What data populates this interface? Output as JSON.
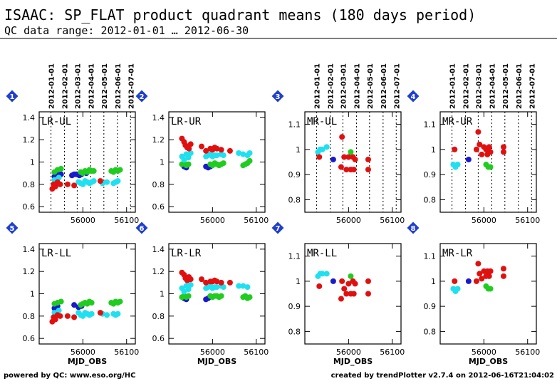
{
  "header": {
    "title": "ISAAC: SP_FLAT product quadrant means (180 days period)",
    "subtitle": "QC data range: 2012-01-01 … 2012-06-30"
  },
  "footer": {
    "left": "powered by QC: www.eso.org/HC",
    "right": "created by trendPlotter v2.7.4 on 2012-06-16T21:04:02"
  },
  "colors": {
    "blue": "#1a1acc",
    "red": "#e01010",
    "cyan": "#20e0f0",
    "green": "#20cc20",
    "badge": "#1f3fcc"
  },
  "chart_data": [
    {
      "type": "scatter",
      "panel": "1",
      "label": "LR-UL",
      "xlim": [
        55900,
        56120
      ],
      "ylim": [
        0.55,
        1.45
      ],
      "xticks": [
        56000,
        56100
      ],
      "yticks": [
        0.6,
        0.8,
        1,
        1.2,
        1.4
      ],
      "xlabel": "MJD_OBS",
      "date_ticks": [
        "2012-01-01",
        "2012-02-01",
        "2012-03-01",
        "2012-04-01",
        "2012-05-01",
        "2012-06-01",
        "2012-07-01"
      ],
      "date_mjd": [
        55927,
        55958,
        55987,
        56018,
        56048,
        56079,
        56109
      ],
      "series": [
        {
          "color": "blue",
          "x": [
            55935,
            55942,
            55950,
            55975,
            55980,
            55985,
            55992,
            55997,
            56008
          ],
          "y": [
            0.87,
            0.89,
            0.89,
            0.88,
            0.89,
            0.89,
            0.88,
            0.89,
            0.9
          ]
        },
        {
          "color": "green",
          "x": [
            55935,
            55942,
            55950,
            55995,
            56000,
            56005,
            56010,
            56015,
            56020,
            56025,
            56065,
            56070,
            56075,
            56080,
            56085
          ],
          "y": [
            0.91,
            0.93,
            0.94,
            0.91,
            0.9,
            0.92,
            0.91,
            0.93,
            0.92,
            0.92,
            0.92,
            0.91,
            0.93,
            0.92,
            0.93
          ]
        },
        {
          "color": "cyan",
          "x": [
            55935,
            55940,
            55945,
            55990,
            55995,
            56000,
            56005,
            56010,
            56015,
            56020,
            56025,
            56045,
            56055,
            56070,
            56075,
            56080
          ],
          "y": [
            0.84,
            0.82,
            0.86,
            0.82,
            0.81,
            0.8,
            0.83,
            0.82,
            0.81,
            0.82,
            0.83,
            0.81,
            0.82,
            0.81,
            0.82,
            0.83
          ]
        },
        {
          "color": "red",
          "x": [
            55930,
            55933,
            55937,
            55942,
            55948,
            55965,
            55980,
            56040
          ],
          "y": [
            0.76,
            0.8,
            0.78,
            0.82,
            0.8,
            0.8,
            0.79,
            0.83
          ]
        }
      ]
    },
    {
      "type": "scatter",
      "panel": "2",
      "label": "LR-UR",
      "xlim": [
        55900,
        56120
      ],
      "ylim": [
        0.55,
        1.45
      ],
      "xticks": [
        56000,
        56100
      ],
      "yticks": [
        0.6,
        0.8,
        1,
        1.2,
        1.4
      ],
      "xlabel": "MJD_OBS",
      "series": [
        {
          "color": "blue",
          "x": [
            55935,
            55940,
            55985,
            55990,
            55995
          ],
          "y": [
            0.96,
            0.95,
            0.96,
            0.95,
            0.96
          ]
        },
        {
          "color": "green",
          "x": [
            55930,
            55935,
            55940,
            55945,
            55995,
            56000,
            56005,
            56010,
            56015,
            56020,
            56025,
            56070,
            56075,
            56080,
            56085
          ],
          "y": [
            0.98,
            0.99,
            0.97,
            0.98,
            0.98,
            0.97,
            0.99,
            0.98,
            0.97,
            0.98,
            0.99,
            0.97,
            0.98,
            0.99,
            1.01
          ]
        },
        {
          "color": "cyan",
          "x": [
            55930,
            55935,
            55940,
            55945,
            55950,
            55985,
            55990,
            55995,
            56000,
            56005,
            56010,
            56020,
            56025,
            56060,
            56070,
            56080,
            56085
          ],
          "y": [
            1.05,
            1.02,
            1.07,
            1.04,
            1.08,
            1.05,
            1.06,
            1.07,
            1.05,
            1.06,
            1.06,
            1.07,
            1.06,
            1.08,
            1.07,
            1.06,
            1.08
          ]
        },
        {
          "color": "red",
          "x": [
            55930,
            55935,
            55938,
            55942,
            55946,
            55950,
            55975,
            55985,
            55995,
            56000,
            56005,
            56010,
            56020,
            56040
          ],
          "y": [
            1.21,
            1.18,
            1.15,
            1.13,
            1.12,
            1.16,
            1.14,
            1.1,
            1.12,
            1.11,
            1.13,
            1.12,
            1.11,
            1.1
          ]
        }
      ]
    },
    {
      "type": "scatter",
      "panel": "3",
      "label": "MR-UL",
      "xlim": [
        55900,
        56120
      ],
      "ylim": [
        0.75,
        1.15
      ],
      "xticks": [
        56000,
        56100
      ],
      "yticks": [
        0.8,
        0.9,
        1,
        1.1
      ],
      "xlabel": "MJD_OBS",
      "date_ticks": [
        "2012-01-01",
        "2012-02-01",
        "2012-03-01",
        "2012-04-01",
        "2012-05-01",
        "2012-06-01",
        "2012-07-01"
      ],
      "date_mjd": [
        55927,
        55958,
        55987,
        56018,
        56048,
        56079,
        56109
      ],
      "series": [
        {
          "color": "blue",
          "x": [
            55965
          ],
          "y": [
            0.96
          ]
        },
        {
          "color": "green",
          "x": [
            56005,
            56010
          ],
          "y": [
            0.99,
            0.97
          ]
        },
        {
          "color": "cyan",
          "x": [
            55930,
            55935,
            55940,
            55950
          ],
          "y": [
            0.99,
            1.0,
            1.0,
            1.01
          ]
        },
        {
          "color": "red",
          "x": [
            55933,
            55983,
            55985,
            55990,
            55995,
            56000,
            56005,
            56010,
            56012,
            56015,
            56045,
            56045
          ],
          "y": [
            0.97,
            0.93,
            1.05,
            0.97,
            0.92,
            0.97,
            0.92,
            0.97,
            0.92,
            0.96,
            0.92,
            0.96
          ]
        }
      ]
    },
    {
      "type": "scatter",
      "panel": "4",
      "label": "MR-UR",
      "xlim": [
        55900,
        56120
      ],
      "ylim": [
        0.75,
        1.15
      ],
      "xticks": [
        56000,
        56100
      ],
      "yticks": [
        0.8,
        0.9,
        1,
        1.1
      ],
      "xlabel": "MJD_OBS",
      "date_ticks": [
        "2012-01-01",
        "2012-02-01",
        "2012-03-01",
        "2012-04-01",
        "2012-05-01",
        "2012-06-01",
        "2012-07-01"
      ],
      "date_mjd": [
        55927,
        55958,
        55987,
        56018,
        56048,
        56079,
        56109
      ],
      "series": [
        {
          "color": "blue",
          "x": [
            55965
          ],
          "y": [
            0.96
          ]
        },
        {
          "color": "green",
          "x": [
            56005,
            56010,
            56015
          ],
          "y": [
            0.94,
            0.93,
            0.93
          ]
        },
        {
          "color": "cyan",
          "x": [
            55930,
            55935,
            55940
          ],
          "y": [
            0.94,
            0.93,
            0.94
          ]
        },
        {
          "color": "red",
          "x": [
            55933,
            55983,
            55987,
            55990,
            55995,
            56000,
            56005,
            56008,
            56012,
            56015,
            56045,
            56045
          ],
          "y": [
            1.0,
            1.0,
            1.07,
            1.02,
            0.98,
            1.01,
            1.0,
            0.98,
            1.01,
            0.99,
            1.01,
            0.99
          ]
        }
      ]
    },
    {
      "type": "scatter",
      "panel": "5",
      "label": "LR-LL",
      "xlim": [
        55900,
        56120
      ],
      "ylim": [
        0.55,
        1.45
      ],
      "xticks": [
        56000,
        56100
      ],
      "yticks": [
        0.6,
        0.8,
        1,
        1.2,
        1.4
      ],
      "xlabel": "MJD_OBS",
      "series": [
        {
          "color": "blue",
          "x": [
            55935,
            55942,
            55980,
            55990,
            55997
          ],
          "y": [
            0.87,
            0.89,
            0.9,
            0.88,
            0.89
          ]
        },
        {
          "color": "green",
          "x": [
            55935,
            55942,
            55950,
            55995,
            56000,
            56005,
            56010,
            56015,
            56020,
            56065,
            56070,
            56075,
            56080,
            56085
          ],
          "y": [
            0.91,
            0.92,
            0.93,
            0.9,
            0.91,
            0.92,
            0.91,
            0.93,
            0.92,
            0.92,
            0.91,
            0.93,
            0.92,
            0.93
          ]
        },
        {
          "color": "cyan",
          "x": [
            55935,
            55940,
            55945,
            55990,
            55995,
            56000,
            56005,
            56010,
            56015,
            56020,
            56045,
            56055,
            56070,
            56075,
            56080
          ],
          "y": [
            0.83,
            0.82,
            0.85,
            0.83,
            0.81,
            0.8,
            0.83,
            0.82,
            0.81,
            0.82,
            0.82,
            0.81,
            0.82,
            0.81,
            0.82
          ]
        },
        {
          "color": "red",
          "x": [
            55930,
            55933,
            55937,
            55942,
            55948,
            55965,
            55980,
            56040
          ],
          "y": [
            0.75,
            0.79,
            0.77,
            0.81,
            0.8,
            0.8,
            0.79,
            0.83
          ]
        }
      ]
    },
    {
      "type": "scatter",
      "panel": "6",
      "label": "LR-LR",
      "xlim": [
        55900,
        56120
      ],
      "ylim": [
        0.55,
        1.45
      ],
      "xticks": [
        56000,
        56100
      ],
      "yticks": [
        0.6,
        0.8,
        1,
        1.2,
        1.4
      ],
      "xlabel": "MJD_OBS",
      "series": [
        {
          "color": "blue",
          "x": [
            55935,
            55940,
            55985,
            55990
          ],
          "y": [
            0.96,
            0.95,
            0.95,
            0.96
          ]
        },
        {
          "color": "green",
          "x": [
            55930,
            55935,
            55940,
            55945,
            55995,
            56000,
            56005,
            56010,
            56015,
            56020,
            56070,
            56075,
            56080,
            56085
          ],
          "y": [
            0.97,
            0.98,
            0.97,
            0.98,
            0.98,
            0.97,
            0.98,
            0.98,
            0.97,
            0.98,
            0.97,
            0.98,
            0.96,
            0.97
          ]
        },
        {
          "color": "cyan",
          "x": [
            55930,
            55935,
            55940,
            55945,
            55950,
            55985,
            55990,
            55995,
            56000,
            56005,
            56010,
            56020,
            56025,
            56060,
            56070,
            56080
          ],
          "y": [
            1.05,
            1.02,
            1.07,
            1.04,
            1.08,
            1.05,
            1.06,
            1.07,
            1.05,
            1.06,
            1.06,
            1.07,
            1.06,
            1.07,
            1.07,
            1.06
          ]
        },
        {
          "color": "red",
          "x": [
            55930,
            55935,
            55938,
            55942,
            55946,
            55950,
            55975,
            55985,
            55995,
            56000,
            56005,
            56010,
            56020,
            56040
          ],
          "y": [
            1.19,
            1.17,
            1.14,
            1.12,
            1.15,
            1.13,
            1.13,
            1.1,
            1.11,
            1.11,
            1.12,
            1.11,
            1.1,
            1.1
          ]
        }
      ]
    },
    {
      "type": "scatter",
      "panel": "7",
      "label": "MR-LL",
      "xlim": [
        55900,
        56120
      ],
      "ylim": [
        0.75,
        1.15
      ],
      "xticks": [
        56000,
        56100
      ],
      "yticks": [
        0.8,
        0.9,
        1,
        1.1
      ],
      "xlabel": "MJD_OBS",
      "series": [
        {
          "color": "blue",
          "x": [
            55965
          ],
          "y": [
            1.0
          ]
        },
        {
          "color": "green",
          "x": [
            56005,
            56010
          ],
          "y": [
            1.02,
            1.0
          ]
        },
        {
          "color": "cyan",
          "x": [
            55930,
            55935,
            55940,
            55950
          ],
          "y": [
            1.02,
            1.03,
            1.03,
            1.03
          ]
        },
        {
          "color": "red",
          "x": [
            55933,
            55983,
            55985,
            55990,
            55995,
            56000,
            56005,
            56010,
            56012,
            56015,
            56045,
            56045
          ],
          "y": [
            0.98,
            0.93,
            1.0,
            0.97,
            0.95,
            0.99,
            0.95,
            1.0,
            0.95,
            0.99,
            0.95,
            1.0
          ]
        }
      ]
    },
    {
      "type": "scatter",
      "panel": "8",
      "label": "MR-LR",
      "xlim": [
        55900,
        56120
      ],
      "ylim": [
        0.75,
        1.15
      ],
      "xticks": [
        56000,
        56100
      ],
      "yticks": [
        0.8,
        0.9,
        1,
        1.1
      ],
      "xlabel": "MJD_OBS",
      "series": [
        {
          "color": "blue",
          "x": [
            55965
          ],
          "y": [
            1.0
          ]
        },
        {
          "color": "green",
          "x": [
            56005,
            56010,
            56015
          ],
          "y": [
            0.98,
            0.97,
            0.97
          ]
        },
        {
          "color": "cyan",
          "x": [
            55930,
            55935,
            55940
          ],
          "y": [
            0.97,
            0.96,
            0.97
          ]
        },
        {
          "color": "red",
          "x": [
            55933,
            55983,
            55987,
            55990,
            55995,
            56000,
            56005,
            56008,
            56012,
            56015,
            56045,
            56045
          ],
          "y": [
            1.0,
            1.0,
            1.07,
            1.03,
            1.01,
            1.04,
            1.02,
            1.04,
            1.02,
            1.04,
            1.05,
            1.02
          ]
        }
      ]
    }
  ]
}
